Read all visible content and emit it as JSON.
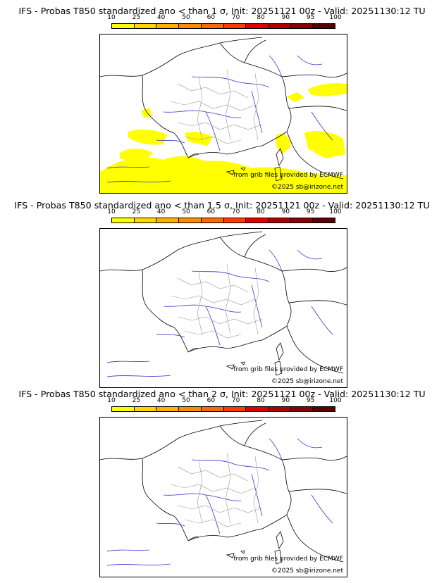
{
  "panels": [
    {
      "title": "IFS - Probas T850  standardized ano < than 1 σ, Init: 20251121 00z - Valid: 20251130:12 TU",
      "credit_source": "from grib files provided by ECMWF",
      "credit_copyright": "©2025 sb@irizone.net"
    },
    {
      "title": "IFS - Probas T850  standardized ano < than 1.5 σ, Init: 20251121 00z - Valid: 20251130:12 TU",
      "credit_source": "from grib files provided by ECMWF",
      "credit_copyright": "©2025 sb@irizone.net"
    },
    {
      "title": "IFS - Probas T850  standardized ano < than 2 σ, Init: 20251121 00z - Valid: 20251130:12 TU",
      "credit_source": "from grib files provided by ECMWF",
      "credit_copyright": "©2025 sb@irizone.net"
    }
  ],
  "colorbar": {
    "ticks": [
      "10",
      "25",
      "40",
      "50",
      "60",
      "70",
      "80",
      "90",
      "95",
      "100"
    ],
    "colors": [
      "#ffff00",
      "#ffd700",
      "#ffb000",
      "#ff8c00",
      "#ff6a00",
      "#ff3c00",
      "#e00000",
      "#b00000",
      "#8b0000",
      "#5a0000"
    ]
  },
  "colors": {
    "probability_fill": "#ffff00",
    "rivers": "#3333cc",
    "borders": "#000000",
    "regions": "#999999"
  }
}
